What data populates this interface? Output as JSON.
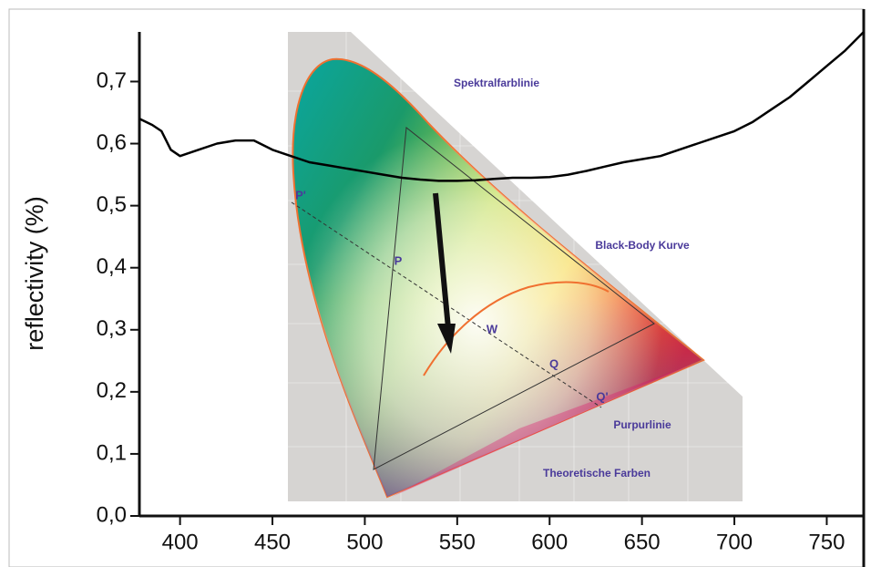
{
  "chart_data": {
    "type": "line",
    "ylabel": "reflectivity (%)",
    "x": [
      378,
      385,
      390,
      395,
      400,
      410,
      420,
      430,
      440,
      450,
      460,
      470,
      480,
      490,
      500,
      510,
      520,
      530,
      540,
      550,
      560,
      570,
      580,
      590,
      600,
      610,
      620,
      630,
      640,
      650,
      660,
      670,
      680,
      690,
      700,
      710,
      720,
      730,
      740,
      750,
      760,
      770
    ],
    "values": [
      0.64,
      0.63,
      0.62,
      0.59,
      0.58,
      0.59,
      0.6,
      0.605,
      0.605,
      0.59,
      0.58,
      0.57,
      0.565,
      0.56,
      0.555,
      0.55,
      0.545,
      0.542,
      0.54,
      0.54,
      0.541,
      0.543,
      0.545,
      0.545,
      0.546,
      0.55,
      0.556,
      0.563,
      0.57,
      0.575,
      0.58,
      0.59,
      0.6,
      0.61,
      0.62,
      0.635,
      0.655,
      0.675,
      0.7,
      0.725,
      0.75,
      0.78
    ],
    "color": "#000000",
    "xlim": [
      378,
      770
    ],
    "xticks": [
      400,
      450,
      500,
      550,
      600,
      650,
      700,
      750
    ],
    "ylim": [
      0,
      0.78
    ],
    "yticks": [
      {
        "value": 0,
        "label": "0,0"
      },
      {
        "value": 0.1,
        "label": "0,1"
      },
      {
        "value": 0.2,
        "label": "0,2"
      },
      {
        "value": 0.3,
        "label": "0,3"
      },
      {
        "value": 0.4,
        "label": "0,4"
      },
      {
        "value": 0.5,
        "label": "0,5"
      },
      {
        "value": 0.6,
        "label": "0,6"
      },
      {
        "value": 0.7,
        "label": "0,7"
      }
    ],
    "annotations": [
      "Spektralfarblinie",
      "Black-Body Kurve",
      "Purpurlinie",
      "Theoretische Farben",
      "P",
      "P'",
      "Q",
      "Q'",
      "W"
    ]
  }
}
